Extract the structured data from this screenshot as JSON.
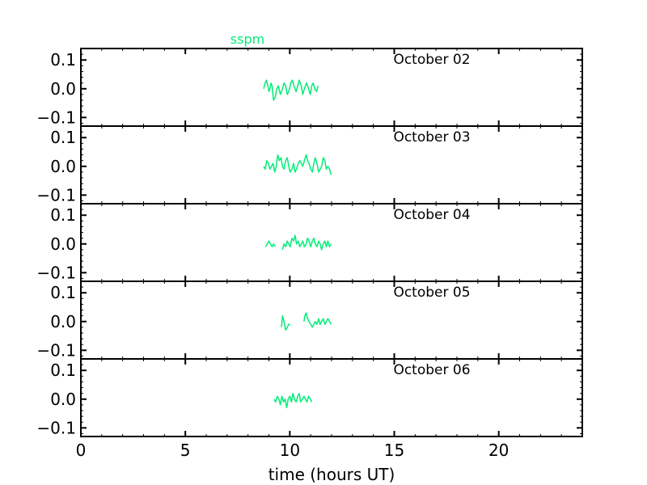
{
  "chart_data": {
    "type": "line",
    "legend_label": "sspm",
    "series_color": "#00ee77",
    "xlabel": "time (hours UT)",
    "xlim": [
      0,
      24
    ],
    "x_ticks": [
      0,
      5,
      10,
      15,
      20
    ],
    "x_tick_labels": [
      "0",
      "5",
      "10",
      "15",
      "20"
    ],
    "ylim": [
      -0.13,
      0.14
    ],
    "y_ticks": [
      0.1,
      0.0,
      -0.1
    ],
    "y_tick_labels": [
      "0.1",
      "0.0",
      "−0.1"
    ],
    "panels": [
      {
        "label": "October 02",
        "segments": [
          [
            [
              8.75,
              0.0
            ],
            [
              8.82,
              0.02
            ],
            [
              8.88,
              0.03
            ],
            [
              8.95,
              0.01
            ],
            [
              9.0,
              -0.01
            ],
            [
              9.05,
              0.0
            ],
            [
              9.1,
              0.02
            ],
            [
              9.15,
              0.01
            ],
            [
              9.22,
              -0.04
            ],
            [
              9.3,
              -0.03
            ],
            [
              9.38,
              0.0
            ],
            [
              9.45,
              0.01
            ],
            [
              9.55,
              -0.02
            ],
            [
              9.65,
              0.0
            ],
            [
              9.72,
              0.02
            ],
            [
              9.8,
              0.01
            ],
            [
              9.88,
              -0.02
            ],
            [
              9.95,
              -0.01
            ],
            [
              10.05,
              0.02
            ],
            [
              10.12,
              0.03
            ],
            [
              10.2,
              0.01
            ],
            [
              10.3,
              -0.01
            ],
            [
              10.38,
              0.01
            ],
            [
              10.45,
              0.03
            ],
            [
              10.55,
              0.01
            ],
            [
              10.62,
              -0.02
            ],
            [
              10.7,
              0.0
            ],
            [
              10.8,
              0.02
            ],
            [
              10.9,
              0.0
            ],
            [
              10.98,
              -0.02
            ],
            [
              11.05,
              0.01
            ],
            [
              11.12,
              0.02
            ],
            [
              11.2,
              0.0
            ],
            [
              11.28,
              -0.01
            ],
            [
              11.35,
              0.01
            ]
          ]
        ]
      },
      {
        "label": "October 03",
        "segments": [
          [
            [
              8.75,
              0.0
            ],
            [
              8.82,
              -0.01
            ],
            [
              8.9,
              0.02
            ],
            [
              8.98,
              0.01
            ],
            [
              9.05,
              -0.01
            ],
            [
              9.12,
              0.0
            ],
            [
              9.2,
              0.01
            ],
            [
              9.28,
              -0.02
            ],
            [
              9.35,
              0.0
            ],
            [
              9.42,
              0.04
            ],
            [
              9.5,
              0.02
            ],
            [
              9.58,
              0.03
            ],
            [
              9.65,
              0.0
            ],
            [
              9.72,
              -0.01
            ],
            [
              9.8,
              0.02
            ],
            [
              9.88,
              0.03
            ],
            [
              9.95,
              0.0
            ],
            [
              10.02,
              -0.02
            ],
            [
              10.1,
              -0.01
            ],
            [
              10.18,
              0.01
            ],
            [
              10.25,
              -0.02
            ],
            [
              10.32,
              -0.01
            ],
            [
              10.4,
              0.01
            ],
            [
              10.48,
              0.02
            ],
            [
              10.55,
              0.01
            ],
            [
              10.62,
              0.0
            ],
            [
              10.7,
              0.02
            ],
            [
              10.78,
              0.04
            ],
            [
              10.85,
              0.02
            ],
            [
              10.92,
              0.01
            ],
            [
              11.0,
              -0.01
            ],
            [
              11.08,
              -0.02
            ],
            [
              11.15,
              0.01
            ],
            [
              11.22,
              0.03
            ],
            [
              11.3,
              0.01
            ],
            [
              11.38,
              -0.02
            ],
            [
              11.45,
              -0.01
            ],
            [
              11.52,
              0.0
            ],
            [
              11.6,
              0.03
            ],
            [
              11.68,
              0.02
            ],
            [
              11.75,
              -0.01
            ],
            [
              11.82,
              0.0
            ],
            [
              11.9,
              -0.01
            ],
            [
              11.98,
              -0.03
            ]
          ]
        ]
      },
      {
        "label": "October 04",
        "segments": [
          [
            [
              8.85,
              -0.01
            ],
            [
              8.92,
              0.0
            ],
            [
              9.0,
              0.01
            ],
            [
              9.08,
              0.0
            ],
            [
              9.15,
              -0.01
            ],
            [
              9.22,
              0.0
            ],
            [
              9.3,
              -0.01
            ]
          ],
          [
            [
              9.65,
              -0.02
            ],
            [
              9.72,
              0.0
            ],
            [
              9.8,
              -0.01
            ],
            [
              9.88,
              0.01
            ],
            [
              9.95,
              0.0
            ],
            [
              10.02,
              -0.01
            ],
            [
              10.1,
              0.02
            ],
            [
              10.18,
              0.01
            ],
            [
              10.25,
              0.03
            ],
            [
              10.32,
              0.0
            ],
            [
              10.4,
              0.01
            ],
            [
              10.48,
              -0.01
            ],
            [
              10.55,
              0.0
            ],
            [
              10.62,
              0.01
            ],
            [
              10.7,
              -0.01
            ],
            [
              10.78,
              0.0
            ],
            [
              10.85,
              0.02
            ],
            [
              10.92,
              0.01
            ],
            [
              11.0,
              -0.01
            ],
            [
              11.08,
              0.01
            ],
            [
              11.15,
              0.02
            ],
            [
              11.22,
              0.0
            ],
            [
              11.3,
              -0.01
            ],
            [
              11.38,
              0.01
            ],
            [
              11.45,
              0.0
            ],
            [
              11.52,
              -0.02
            ],
            [
              11.6,
              0.0
            ],
            [
              11.68,
              0.01
            ],
            [
              11.75,
              -0.01
            ],
            [
              11.82,
              0.01
            ],
            [
              11.9,
              -0.01
            ],
            [
              11.98,
              0.0
            ]
          ]
        ]
      },
      {
        "label": "October 05",
        "segments": [
          [
            [
              9.6,
              -0.02
            ],
            [
              9.65,
              0.02
            ],
            [
              9.72,
              0.0
            ],
            [
              9.8,
              -0.03
            ],
            [
              9.88,
              -0.02
            ],
            [
              9.95,
              -0.01
            ],
            [
              10.02,
              -0.01
            ]
          ],
          [
            [
              10.68,
              0.0
            ],
            [
              10.72,
              0.02
            ],
            [
              10.78,
              0.03
            ],
            [
              10.85,
              0.01
            ],
            [
              10.92,
              0.0
            ],
            [
              11.0,
              -0.01
            ],
            [
              11.08,
              -0.02
            ],
            [
              11.15,
              -0.01
            ],
            [
              11.22,
              0.0
            ],
            [
              11.3,
              -0.01
            ],
            [
              11.38,
              0.01
            ],
            [
              11.45,
              -0.01
            ],
            [
              11.52,
              0.0
            ],
            [
              11.6,
              0.01
            ],
            [
              11.68,
              -0.01
            ],
            [
              11.75,
              0.0
            ],
            [
              11.82,
              0.01
            ],
            [
              11.9,
              0.0
            ],
            [
              11.98,
              -0.01
            ]
          ]
        ]
      },
      {
        "label": "October 06",
        "segments": [
          [
            [
              9.25,
              0.0
            ],
            [
              9.32,
              -0.01
            ],
            [
              9.4,
              0.01
            ],
            [
              9.48,
              0.0
            ],
            [
              9.55,
              -0.02
            ],
            [
              9.62,
              0.01
            ],
            [
              9.7,
              -0.01
            ],
            [
              9.78,
              0.0
            ],
            [
              9.85,
              -0.03
            ],
            [
              9.92,
              0.0
            ],
            [
              10.0,
              0.01
            ],
            [
              10.08,
              -0.01
            ],
            [
              10.15,
              0.02
            ],
            [
              10.22,
              0.0
            ],
            [
              10.3,
              -0.01
            ],
            [
              10.38,
              0.01
            ],
            [
              10.45,
              0.02
            ],
            [
              10.52,
              -0.01
            ],
            [
              10.6,
              0.0
            ],
            [
              10.68,
              0.01
            ],
            [
              10.75,
              0.0
            ],
            [
              10.82,
              -0.01
            ],
            [
              10.9,
              0.01
            ],
            [
              10.98,
              0.0
            ],
            [
              11.05,
              -0.01
            ]
          ]
        ]
      }
    ]
  }
}
